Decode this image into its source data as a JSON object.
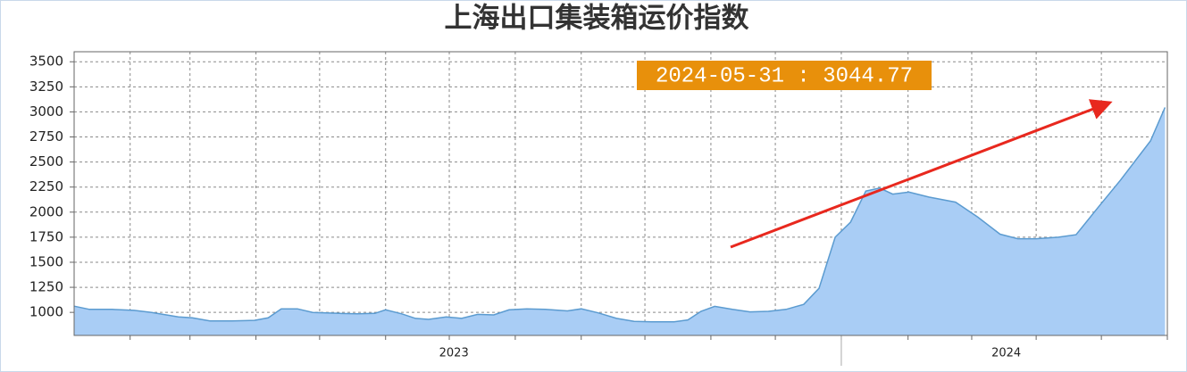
{
  "chart_data": {
    "type": "area",
    "title": "上海出口集装箱运价指数",
    "annotation": "2024-05-31 : 3044.77",
    "color": "#a9cdf5",
    "line_color": "#5b9bd0",
    "grid": true,
    "x": [
      2023.0,
      2023.02,
      2023.049,
      2023.078,
      2023.101,
      2023.136,
      2023.154,
      2023.177,
      2023.206,
      2023.235,
      2023.253,
      2023.27,
      2023.291,
      2023.311,
      2023.346,
      2023.369,
      2023.392,
      2023.406,
      2023.427,
      2023.445,
      2023.462,
      2023.485,
      2023.505,
      2023.526,
      2023.547,
      2023.567,
      2023.59,
      2023.614,
      2023.643,
      2023.661,
      2023.683,
      2023.707,
      2023.73,
      2023.753,
      2023.782,
      2023.8,
      2023.817,
      2023.835,
      2023.858,
      2023.881,
      2023.905,
      2023.928,
      2023.951,
      2023.971,
      2023.992,
      2024.012,
      2024.032,
      2024.05,
      2024.067,
      2024.088,
      2024.114,
      2024.149,
      2024.178,
      2024.207,
      2024.23,
      2024.254,
      2024.283,
      2024.306,
      2024.335,
      2024.364,
      2024.403,
      2024.422
    ],
    "values": [
      1062,
      1030,
      1030,
      1020,
      1000,
      955,
      945,
      915,
      915,
      920,
      945,
      1035,
      1035,
      1000,
      990,
      985,
      990,
      1025,
      985,
      940,
      930,
      955,
      940,
      980,
      975,
      1025,
      1035,
      1030,
      1015,
      1035,
      995,
      940,
      910,
      905,
      905,
      925,
      1010,
      1060,
      1030,
      1005,
      1010,
      1030,
      1080,
      1240,
      1750,
      1900,
      2210,
      2240,
      2180,
      2200,
      2150,
      2100,
      1950,
      1780,
      1735,
      1735,
      1750,
      1775,
      2050,
      2320,
      2710,
      3044.77
    ],
    "xlim": [
      2023.0,
      2024.425
    ],
    "xgrid": [
      2023.073,
      2023.151,
      2023.237,
      2023.32,
      2023.406,
      2023.489,
      2023.575,
      2023.661,
      2023.744,
      2023.83,
      2023.914,
      2024.0,
      2024.087,
      2024.17,
      2024.254,
      2024.339,
      2024.425
    ],
    "xlabels": [
      {
        "value": 2023.495,
        "label": "2023"
      },
      {
        "value": 2024.215,
        "label": "2024"
      }
    ],
    "year_separator": 2024.0,
    "ylim": [
      770,
      3600
    ],
    "yticks": [
      1000,
      1250,
      1500,
      1750,
      2000,
      2250,
      2500,
      2750,
      3000,
      3250,
      3500
    ]
  }
}
